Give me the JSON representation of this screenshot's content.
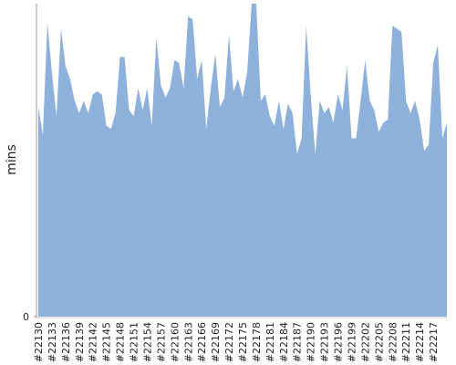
{
  "chart_data": {
    "type": "area",
    "ylabel": "mins",
    "color": "#8eb1db",
    "categories": [
      "#22130",
      null,
      null,
      "#22133",
      null,
      null,
      "#22136",
      null,
      null,
      "#22139",
      null,
      null,
      "#22142",
      null,
      null,
      "#22145",
      null,
      null,
      "#22148",
      null,
      null,
      "#22151",
      null,
      null,
      "#22154",
      null,
      null,
      "#22157",
      null,
      null,
      "#22160",
      null,
      null,
      "#22163",
      null,
      null,
      "#22166",
      null,
      null,
      "#22169",
      null,
      null,
      "#22172",
      null,
      null,
      "#22175",
      null,
      null,
      "#22178",
      null,
      null,
      "#22181",
      null,
      null,
      "#22184",
      null,
      null,
      "#22187",
      null,
      null,
      "#22190",
      null,
      null,
      "#22193",
      null,
      null,
      "#22196",
      null,
      null,
      "#22199",
      null,
      null,
      "#22202",
      null,
      null,
      "#22205",
      null,
      null,
      "#22208",
      null,
      null,
      "#22211",
      null,
      null,
      "#22214",
      null,
      null,
      "#22217",
      null,
      null,
      null
    ],
    "values": [
      67,
      58,
      94,
      78,
      64,
      92,
      80,
      76,
      69,
      65,
      69,
      65,
      71,
      72,
      71,
      61,
      60,
      65,
      83,
      83,
      66,
      64,
      73,
      66,
      73,
      61,
      89,
      74,
      70,
      73,
      82,
      81,
      73,
      96,
      95,
      76,
      82,
      60,
      73,
      84,
      67,
      70,
      90,
      72,
      76,
      70,
      78,
      100,
      100,
      69,
      71,
      64,
      61,
      69,
      60,
      68,
      65,
      52,
      57,
      93,
      71,
      52,
      69,
      65,
      67,
      62,
      71,
      66,
      80,
      57,
      57,
      69,
      82,
      69,
      66,
      59,
      62,
      63,
      93,
      92,
      91,
      69,
      65,
      69,
      63,
      53,
      55,
      81,
      87,
      57,
      62
    ],
    "ylim": [
      0,
      100
    ],
    "yticks": [
      0
    ]
  }
}
